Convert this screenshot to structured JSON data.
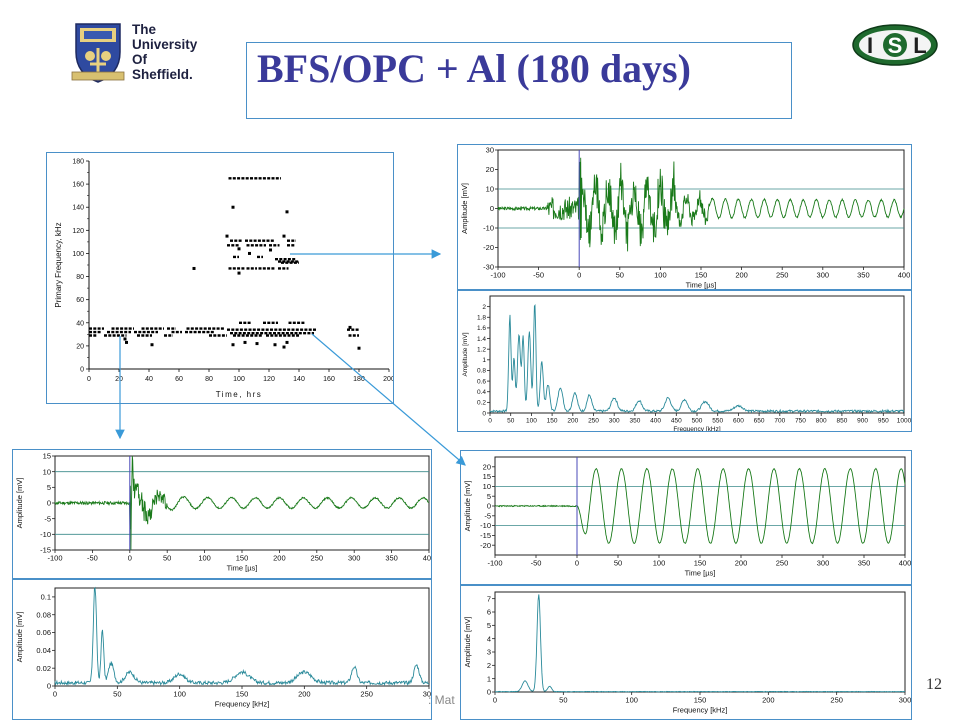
{
  "slide": {
    "title": "BFS/OPC + Al (180 days)",
    "page_number": "12",
    "footer_text": ": Mat"
  },
  "logos": {
    "university": {
      "line1": "The",
      "line2": "University",
      "line3": "Of",
      "line4": "Sheffield."
    },
    "isl": {
      "letter_i": "I",
      "letter_s": "S",
      "letter_l": "L"
    }
  },
  "colors": {
    "title": "#3a3a9a",
    "frame": "#4a90c8",
    "arrow": "#3a9ad8",
    "green_trace": "#1a7a1a",
    "cyan_trace": "#2a8a9a",
    "cursor": "#4a4ab8",
    "ref_line": "#3a8a8a"
  },
  "chart_data": [
    {
      "id": "scatter",
      "type": "scatter",
      "xlabel": "Time, hrs",
      "ylabel": "Primary Frequency, kHz",
      "xlim": [
        0,
        200
      ],
      "ylim": [
        0,
        180
      ],
      "xticks": [
        0,
        20,
        40,
        60,
        80,
        100,
        120,
        140,
        160,
        180,
        200
      ],
      "yticks": [
        0,
        20,
        40,
        60,
        80,
        100,
        120,
        140,
        160,
        180
      ],
      "segments": [
        {
          "x1": 93,
          "x2": 128,
          "y": 165
        },
        {
          "x1": 94,
          "x2": 102,
          "y": 111
        },
        {
          "x1": 104,
          "x2": 124,
          "y": 111
        },
        {
          "x1": 132,
          "x2": 138,
          "y": 111
        },
        {
          "x1": 92,
          "x2": 100,
          "y": 107
        },
        {
          "x1": 105,
          "x2": 118,
          "y": 107
        },
        {
          "x1": 120,
          "x2": 127,
          "y": 107
        },
        {
          "x1": 132,
          "x2": 137,
          "y": 107
        },
        {
          "x1": 96,
          "x2": 100,
          "y": 97
        },
        {
          "x1": 112,
          "x2": 116,
          "y": 97
        },
        {
          "x1": 124,
          "x2": 138,
          "y": 95
        },
        {
          "x1": 126,
          "x2": 140,
          "y": 93
        },
        {
          "x1": 128,
          "x2": 140,
          "y": 92
        },
        {
          "x1": 93,
          "x2": 104,
          "y": 87
        },
        {
          "x1": 105,
          "x2": 112,
          "y": 87
        },
        {
          "x1": 113,
          "x2": 124,
          "y": 87
        },
        {
          "x1": 126,
          "x2": 133,
          "y": 87
        },
        {
          "x1": 100,
          "x2": 108,
          "y": 40
        },
        {
          "x1": 116,
          "x2": 126,
          "y": 40
        },
        {
          "x1": 133,
          "x2": 144,
          "y": 40
        },
        {
          "x1": 0,
          "x2": 10,
          "y": 35
        },
        {
          "x1": 15,
          "x2": 30,
          "y": 35
        },
        {
          "x1": 35,
          "x2": 50,
          "y": 35
        },
        {
          "x1": 52,
          "x2": 58,
          "y": 35
        },
        {
          "x1": 65,
          "x2": 90,
          "y": 35
        },
        {
          "x1": 92,
          "x2": 152,
          "y": 34
        },
        {
          "x1": 172,
          "x2": 180,
          "y": 34
        },
        {
          "x1": 0,
          "x2": 8,
          "y": 32
        },
        {
          "x1": 12,
          "x2": 28,
          "y": 32
        },
        {
          "x1": 30,
          "x2": 46,
          "y": 32
        },
        {
          "x1": 55,
          "x2": 62,
          "y": 32
        },
        {
          "x1": 64,
          "x2": 84,
          "y": 32
        },
        {
          "x1": 94,
          "x2": 150,
          "y": 31
        },
        {
          "x1": 0,
          "x2": 5,
          "y": 29
        },
        {
          "x1": 10,
          "x2": 25,
          "y": 29
        },
        {
          "x1": 32,
          "x2": 42,
          "y": 29
        },
        {
          "x1": 50,
          "x2": 56,
          "y": 29
        },
        {
          "x1": 80,
          "x2": 92,
          "y": 29
        },
        {
          "x1": 96,
          "x2": 116,
          "y": 29
        },
        {
          "x1": 118,
          "x2": 140,
          "y": 29
        },
        {
          "x1": 173,
          "x2": 180,
          "y": 29
        }
      ],
      "points": [
        {
          "x": 96,
          "y": 140
        },
        {
          "x": 132,
          "y": 136
        },
        {
          "x": 92,
          "y": 115
        },
        {
          "x": 130,
          "y": 115
        },
        {
          "x": 100,
          "y": 104
        },
        {
          "x": 121,
          "y": 103
        },
        {
          "x": 107,
          "y": 100
        },
        {
          "x": 70,
          "y": 87
        },
        {
          "x": 100,
          "y": 83
        },
        {
          "x": 25,
          "y": 23
        },
        {
          "x": 42,
          "y": 21
        },
        {
          "x": 96,
          "y": 21
        },
        {
          "x": 104,
          "y": 23
        },
        {
          "x": 112,
          "y": 22
        },
        {
          "x": 124,
          "y": 21
        },
        {
          "x": 132,
          "y": 23
        },
        {
          "x": 180,
          "y": 18
        },
        {
          "x": 174,
          "y": 36
        },
        {
          "x": 24,
          "y": 26
        },
        {
          "x": 130,
          "y": 19
        }
      ]
    },
    {
      "id": "wave-top-right",
      "type": "line",
      "xlabel": "Time [µs]",
      "ylabel": "Amplitude [mV]",
      "xlim": [
        -100,
        400
      ],
      "ylim": [
        -30,
        30
      ],
      "xticks": [
        -100,
        -50,
        0,
        50,
        100,
        150,
        200,
        250,
        300,
        350,
        400
      ],
      "yticks": [
        -30,
        -20,
        -10,
        0,
        10,
        20,
        30
      ],
      "ref_lines": [
        10,
        -10
      ],
      "cursor_x": 0,
      "series": [
        {
          "model": {
            "t0": 0,
            "pre": -40,
            "noise": 0.8,
            "preNoise": 6,
            "burst": 25,
            "burstEnd": 120,
            "decay": 180,
            "sustain": 8,
            "period": 16,
            "seed": 3
          }
        }
      ]
    },
    {
      "id": "spectrum-top-right",
      "type": "line",
      "xlabel": "Frequency [kHz]",
      "ylabel": "Amplitude [mV]",
      "xlim": [
        0,
        1000
      ],
      "ylim": [
        0,
        2.2
      ],
      "xticks": [
        0,
        50,
        100,
        150,
        200,
        250,
        300,
        350,
        400,
        450,
        500,
        550,
        600,
        650,
        700,
        750,
        800,
        850,
        900,
        950,
        1000
      ],
      "yticks": [
        0,
        0.2,
        0.4,
        0.6,
        0.8,
        1,
        1.2,
        1.4,
        1.6,
        1.8,
        2
      ],
      "series": [
        {
          "peaks": [
            {
              "f": 48,
              "a": 1.8,
              "w": 4
            },
            {
              "f": 58,
              "a": 1.0,
              "w": 4
            },
            {
              "f": 70,
              "a": 1.45,
              "w": 5
            },
            {
              "f": 80,
              "a": 1.4,
              "w": 4
            },
            {
              "f": 95,
              "a": 1.5,
              "w": 5
            },
            {
              "f": 108,
              "a": 2.05,
              "w": 4
            },
            {
              "f": 125,
              "a": 0.95,
              "w": 5
            },
            {
              "f": 140,
              "a": 0.5,
              "w": 6
            },
            {
              "f": 170,
              "a": 0.45,
              "w": 8
            },
            {
              "f": 205,
              "a": 0.35,
              "w": 8
            },
            {
              "f": 240,
              "a": 0.3,
              "w": 8
            },
            {
              "f": 300,
              "a": 0.25,
              "w": 10
            },
            {
              "f": 360,
              "a": 0.2,
              "w": 10
            },
            {
              "f": 430,
              "a": 0.25,
              "w": 10
            },
            {
              "f": 470,
              "a": 0.22,
              "w": 10
            },
            {
              "f": 520,
              "a": 0.18,
              "w": 12
            },
            {
              "f": 600,
              "a": 0.1,
              "w": 15
            }
          ],
          "floor": 0.04,
          "seed": 7
        }
      ]
    },
    {
      "id": "wave-bottom-left",
      "type": "line",
      "xlabel": "Time [µs]",
      "ylabel": "Amplitude [mV]",
      "xlim": [
        -100,
        400
      ],
      "ylim": [
        -15,
        15
      ],
      "xticks": [
        -100,
        -50,
        0,
        50,
        100,
        150,
        200,
        250,
        300,
        350,
        400
      ],
      "yticks": [
        -15,
        -10,
        -5,
        0,
        5,
        10,
        15
      ],
      "ref_lines": [
        10,
        -10
      ],
      "cursor_x": 0,
      "series": [
        {
          "model": {
            "t0": 0,
            "pre": -100,
            "noise": 0.5,
            "preNoise": 0.5,
            "burst": 14,
            "burstEnd": 10,
            "decay": 70,
            "sustain": 3,
            "period": 32,
            "seed": 11
          }
        }
      ]
    },
    {
      "id": "spectrum-bottom-left",
      "type": "line",
      "xlabel": "Frequency [kHz]",
      "ylabel": "Amplitude [mV]",
      "xlim": [
        0,
        300
      ],
      "ylim": [
        0,
        0.11
      ],
      "xticks": [
        0,
        50,
        100,
        150,
        200,
        250,
        300
      ],
      "yticks": [
        0,
        0.02,
        0.04,
        0.06,
        0.08,
        0.1
      ],
      "series": [
        {
          "peaks": [
            {
              "f": 32,
              "a": 0.11,
              "w": 1.8
            },
            {
              "f": 38,
              "a": 0.06,
              "w": 1.5
            },
            {
              "f": 45,
              "a": 0.022,
              "w": 3
            },
            {
              "f": 60,
              "a": 0.012,
              "w": 5
            },
            {
              "f": 100,
              "a": 0.01,
              "w": 6
            },
            {
              "f": 150,
              "a": 0.012,
              "w": 8
            },
            {
              "f": 200,
              "a": 0.012,
              "w": 8
            },
            {
              "f": 240,
              "a": 0.018,
              "w": 3
            },
            {
              "f": 290,
              "a": 0.02,
              "w": 3
            }
          ],
          "floor": 0.004,
          "seed": 17
        }
      ]
    },
    {
      "id": "wave-bottom-right",
      "type": "line",
      "xlabel": "Time [µs]",
      "ylabel": "Amplitude [mV]",
      "xlim": [
        -100,
        400
      ],
      "ylim": [
        -25,
        25
      ],
      "xticks": [
        -100,
        -50,
        0,
        50,
        100,
        150,
        200,
        250,
        300,
        350,
        400
      ],
      "yticks": [
        -20,
        -15,
        -10,
        -5,
        0,
        5,
        10,
        15,
        20
      ],
      "ref_lines": [
        10,
        -10
      ],
      "cursor_x": 0,
      "series": [
        {
          "model": {
            "t0": 0,
            "pre": -100,
            "noise": 0.2,
            "preNoise": 0.3,
            "burst": 19,
            "burstEnd": 0,
            "decay": 2000,
            "sustain": 0,
            "period": 31,
            "seed": 23,
            "pure": true
          }
        }
      ]
    },
    {
      "id": "spectrum-bottom-right",
      "type": "line",
      "xlabel": "Frequency [kHz]",
      "ylabel": "Amplitude [mV]",
      "xlim": [
        0,
        300
      ],
      "ylim": [
        0,
        7.5
      ],
      "xticks": [
        0,
        50,
        100,
        150,
        200,
        250,
        300
      ],
      "yticks": [
        0,
        1,
        2,
        3,
        4,
        5,
        6,
        7
      ],
      "series": [
        {
          "peaks": [
            {
              "f": 32,
              "a": 7.3,
              "w": 1.8
            },
            {
              "f": 22,
              "a": 0.8,
              "w": 3
            },
            {
              "f": 40,
              "a": 0.4,
              "w": 2
            }
          ],
          "floor": 0.03,
          "seed": 31
        }
      ]
    }
  ]
}
